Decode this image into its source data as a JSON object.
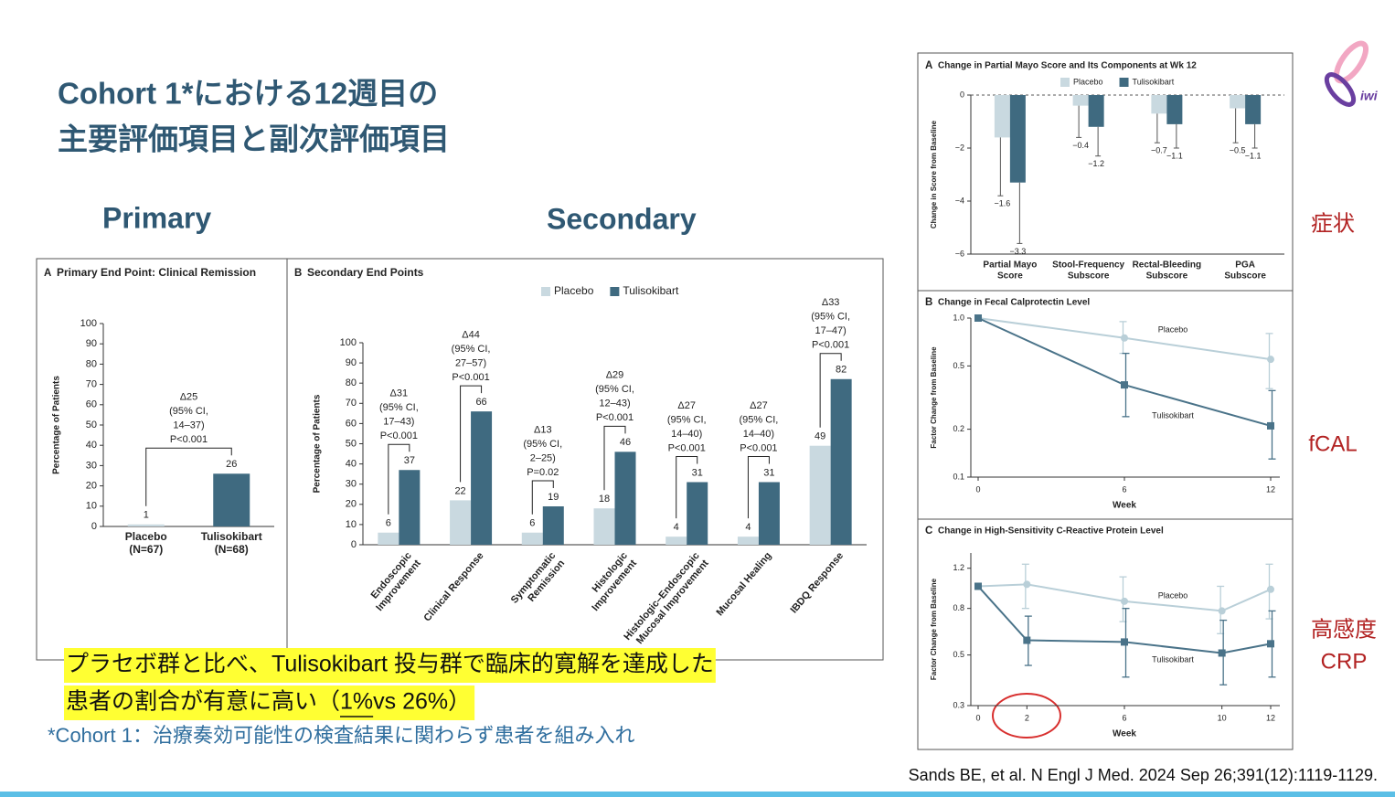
{
  "slide": {
    "title": [
      "Cohort 1*における12週目の",
      "主要評価項目と副次評価項目"
    ],
    "primary_heading": "Primary",
    "secondary_heading": "Secondary",
    "highlight": [
      "プラセボ群と比べ、Tulisokibart 投与群で臨床的寛解を達成した",
      [
        "患者の割合が有意に高い（",
        "1% ",
        "vs 26%）"
      ]
    ],
    "footnote": "*Cohort 1：治療奏効可能性の検査結果に関わらず患者を組み入れ",
    "citation": "Sands BE, et al. N Engl J Med. 2024  Sep 26;391(12):1119-1129.",
    "side_labels": [
      "症状",
      "fCAL",
      [
        "高感度",
        "CRP"
      ]
    ],
    "logo": "iwi"
  },
  "chart_data": [
    {
      "type": "bar",
      "panel_label": "A",
      "title": "Primary End Point: Clinical Remission",
      "categories": [
        [
          "Placebo",
          "(N=67)"
        ],
        [
          "Tulisokibart",
          "(N=68)"
        ]
      ],
      "values": [
        1,
        26
      ],
      "colors": [
        "#c9d9e0",
        "#3f6a80"
      ],
      "ylabel": "Percentage of Patients",
      "ylim": [
        0,
        100
      ],
      "yticks": [
        0,
        10,
        20,
        30,
        40,
        50,
        60,
        70,
        80,
        90,
        100
      ],
      "annotations": [
        [
          "Δ25",
          "(95% CI,",
          "14–37)",
          "P<0.001"
        ]
      ]
    },
    {
      "type": "bar",
      "panel_label": "B",
      "title": "Secondary End Points",
      "categories": [
        [
          "Endoscopic",
          "Improvement"
        ],
        [
          "Clinical Response"
        ],
        [
          "Symptomatic",
          "Remission"
        ],
        [
          "Histologic",
          "Improvement"
        ],
        [
          "Histologic–Endoscopic",
          "Mucosal Improvement"
        ],
        [
          "Mucosal Healing"
        ],
        [
          "IBDQ Response"
        ]
      ],
      "series": [
        {
          "name": "Placebo",
          "color": "#c9d9e0",
          "values": [
            6,
            22,
            6,
            18,
            4,
            4,
            49
          ]
        },
        {
          "name": "Tulisokibart",
          "color": "#3f6a80",
          "values": [
            37,
            66,
            19,
            46,
            31,
            31,
            82
          ]
        }
      ],
      "ylabel": "Percentage of Patients",
      "ylim": [
        0,
        100
      ],
      "yticks": [
        0,
        10,
        20,
        30,
        40,
        50,
        60,
        70,
        80,
        90,
        100
      ],
      "annotations": [
        [
          "Δ31",
          "(95% CI,",
          "17–43)",
          "P<0.001"
        ],
        [
          "Δ44",
          "(95% CI,",
          "27–57)",
          "P<0.001"
        ],
        [
          "Δ13",
          "(95% CI,",
          "2–25)",
          "P=0.02"
        ],
        [
          "Δ29",
          "(95% CI,",
          "12–43)",
          "P<0.001"
        ],
        [
          "Δ27",
          "(95% CI,",
          "14–40)",
          "P<0.001"
        ],
        [
          "Δ27",
          "(95% CI,",
          "14–40)",
          "P<0.001"
        ],
        [
          "Δ33",
          "(95% CI,",
          "17–47)",
          "P<0.001"
        ]
      ]
    },
    {
      "type": "bar",
      "panel_label": "A",
      "title": "Change in Partial Mayo Score and Its Components at Wk 12",
      "categories": [
        [
          "Partial Mayo",
          "Score"
        ],
        [
          "Stool-Frequency",
          "Subscore"
        ],
        [
          "Rectal-Bleeding",
          "Subscore"
        ],
        [
          "PGA",
          "Subscore"
        ]
      ],
      "series": [
        {
          "name": "Placebo",
          "color": "#c9d9e0",
          "values": [
            -1.6,
            -0.4,
            -0.7,
            -0.5
          ],
          "value_labels": [
            "−1.6",
            "−0.4",
            "−0.7",
            "−0.5"
          ],
          "errors": [
            2.2,
            1.2,
            1.1,
            1.3
          ]
        },
        {
          "name": "Tulisokibart",
          "color": "#3f6a80",
          "values": [
            -3.3,
            -1.2,
            -1.1,
            -1.1
          ],
          "value_labels": [
            "−3.3",
            "−1.2",
            "−1.1",
            "−1.1"
          ],
          "errors": [
            2.3,
            1.1,
            0.9,
            0.9
          ]
        }
      ],
      "ylabel": "Change in Score from Baseline",
      "ylim": [
        -6,
        0
      ],
      "yticks": [
        0,
        {
          "value": -2,
          "label": "−2"
        },
        {
          "value": -4,
          "label": "−4"
        },
        {
          "value": -6,
          "label": "−6"
        }
      ]
    },
    {
      "type": "line",
      "panel_label": "B",
      "title": "Change in Fecal Calprotectin Level",
      "x": [
        0,
        6,
        12
      ],
      "xlim": [
        0,
        12
      ],
      "xticks": [
        0,
        6,
        12
      ],
      "xlabel": "Week",
      "ylabel": "Factor Change from Baseline",
      "log_y": true,
      "ylim": [
        0.1,
        1
      ],
      "yticks": [
        0.1,
        0.2,
        0.5,
        {
          "value": 1,
          "label": "1.0"
        }
      ],
      "series": [
        {
          "name": "Placebo",
          "color": "#b9cfd8",
          "values": [
            1,
            0.75,
            0.55
          ],
          "lower": [
            null,
            0.6,
            0.36
          ],
          "upper": [
            null,
            0.95,
            0.8
          ]
        },
        {
          "name": "Tulisokibart",
          "color": "#4a7389",
          "values": [
            1,
            0.38,
            0.21
          ],
          "lower": [
            null,
            0.24,
            0.13
          ],
          "upper": [
            null,
            0.6,
            0.35
          ]
        }
      ]
    },
    {
      "type": "line",
      "panel_label": "C",
      "title": "Change in High-Sensitivity C-Reactive Protein Level",
      "x": [
        0,
        2,
        6,
        10,
        12
      ],
      "xlim": [
        0,
        12
      ],
      "xticks": [
        0,
        2,
        6,
        10,
        12
      ],
      "xlabel": "Week",
      "ylabel": "Factor Change from Baseline",
      "log_y": true,
      "ylim": [
        0.3,
        1.4
      ],
      "yticks": [
        0.3,
        0.5,
        0.8,
        1.2
      ],
      "series": [
        {
          "name": "Placebo",
          "color": "#b9cfd8",
          "values": [
            1,
            1.02,
            0.86,
            0.78,
            0.97
          ],
          "lower": [
            null,
            0.8,
            0.7,
            0.62,
            0.72
          ],
          "upper": [
            null,
            1.25,
            1.1,
            1,
            1.25
          ]
        },
        {
          "name": "Tulisokibart",
          "color": "#4a7389",
          "values": [
            1,
            0.58,
            0.57,
            0.51,
            0.56
          ],
          "lower": [
            null,
            0.45,
            0.4,
            0.37,
            0.4
          ],
          "upper": [
            null,
            0.74,
            0.8,
            0.71,
            0.78
          ]
        }
      ]
    }
  ]
}
